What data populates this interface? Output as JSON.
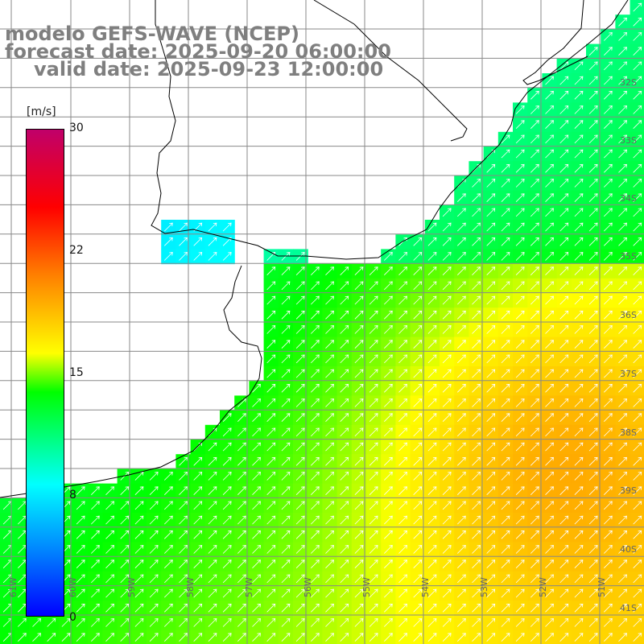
{
  "title": {
    "line1": "modelo GEFS-WAVE (NCEP)",
    "line2": "forecast date: 2025-09-20 06:00:00",
    "line3": "valid date: 2025-09-23 12:00:00"
  },
  "colorbar": {
    "unit": "[m/s]",
    "ticks": [
      "30",
      "22",
      "15",
      "8",
      "0"
    ],
    "tick_values": [
      30,
      22,
      15,
      8,
      0
    ],
    "colors": [
      "#0000ff",
      "#0080ff",
      "#00ffff",
      "#00ff00",
      "#ffff00",
      "#ff8000",
      "#ff0000",
      "#c0006a"
    ]
  },
  "grid": {
    "lat_labels": [
      "32S",
      "33S",
      "34S",
      "35S",
      "36S",
      "37S",
      "38S",
      "39S",
      "40S",
      "41S"
    ],
    "lon_labels": [
      "61W",
      "60W",
      "59W",
      "58W",
      "57W",
      "56W",
      "55W",
      "54W",
      "53W",
      "52W",
      "51W"
    ]
  },
  "colors": {
    "land": "#ffffff",
    "coast": "#000000",
    "grid": "#808080",
    "arrows": "#ffffff",
    "title": "#7f7f7f"
  }
}
